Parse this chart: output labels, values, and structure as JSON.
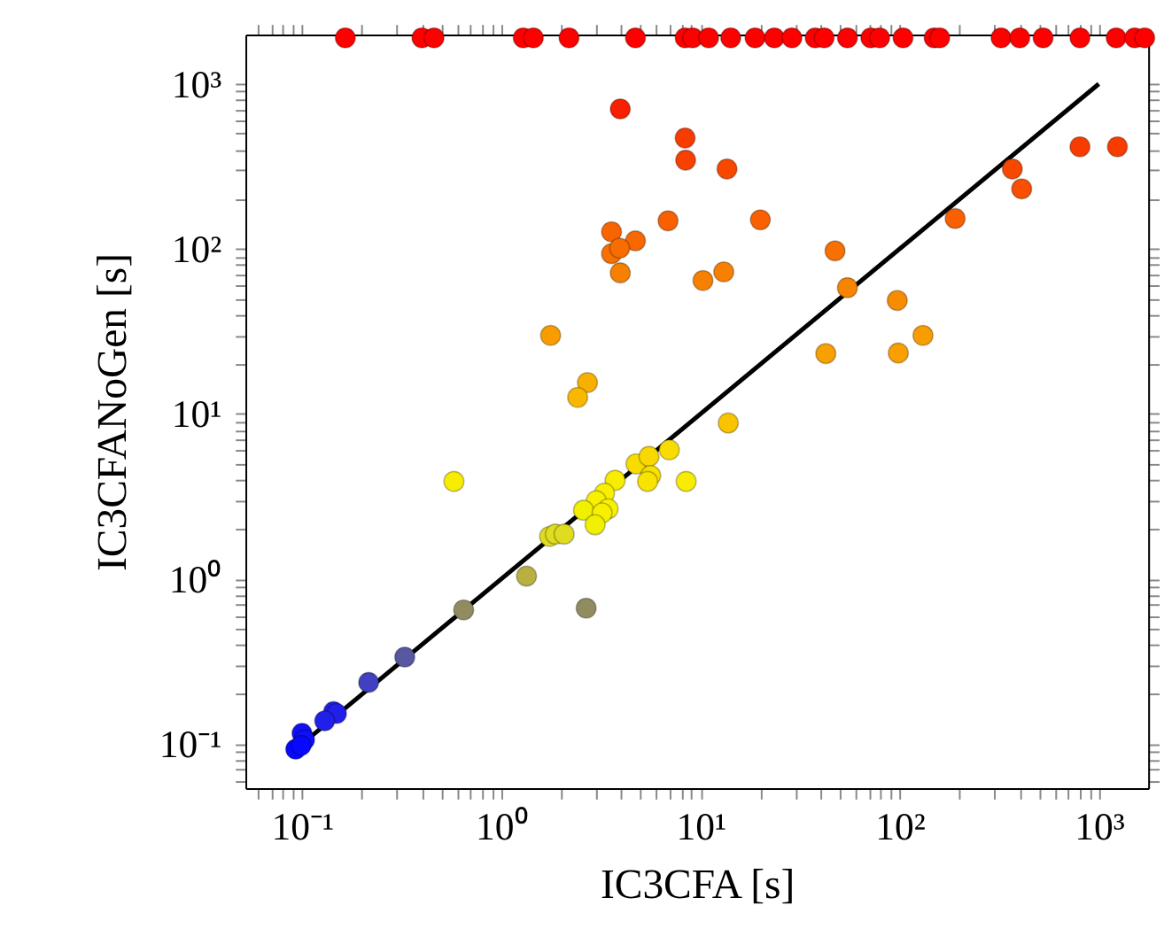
{
  "chart_data": {
    "type": "scatter",
    "xlabel": "IC3CFA [s]",
    "ylabel": "IC3CFANoGen [s]",
    "log": "xy",
    "grid": false,
    "marker": "circle",
    "xlim": [
      0.052,
      1770
    ],
    "ylim": [
      0.054,
      1990
    ],
    "xticks": [
      {
        "value": 0.06,
        "label": null
      },
      {
        "value": 0.07,
        "label": null
      },
      {
        "value": 0.08,
        "label": null
      },
      {
        "value": 0.09,
        "label": null
      },
      {
        "value": 0.1,
        "label": "10⁻¹"
      },
      {
        "value": 0.2,
        "label": null
      },
      {
        "value": 0.3,
        "label": null
      },
      {
        "value": 0.4,
        "label": null
      },
      {
        "value": 0.5,
        "label": null
      },
      {
        "value": 0.6,
        "label": null
      },
      {
        "value": 0.7,
        "label": null
      },
      {
        "value": 0.8,
        "label": null
      },
      {
        "value": 0.9,
        "label": null
      },
      {
        "value": 1,
        "label": "10⁰"
      },
      {
        "value": 2,
        "label": null
      },
      {
        "value": 3,
        "label": null
      },
      {
        "value": 4,
        "label": null
      },
      {
        "value": 5,
        "label": null
      },
      {
        "value": 6,
        "label": null
      },
      {
        "value": 7,
        "label": null
      },
      {
        "value": 8,
        "label": null
      },
      {
        "value": 9,
        "label": null
      },
      {
        "value": 10,
        "label": "10¹"
      },
      {
        "value": 20,
        "label": null
      },
      {
        "value": 30,
        "label": null
      },
      {
        "value": 40,
        "label": null
      },
      {
        "value": 50,
        "label": null
      },
      {
        "value": 60,
        "label": null
      },
      {
        "value": 70,
        "label": null
      },
      {
        "value": 80,
        "label": null
      },
      {
        "value": 90,
        "label": null
      },
      {
        "value": 100,
        "label": "10²"
      },
      {
        "value": 200,
        "label": null
      },
      {
        "value": 300,
        "label": null
      },
      {
        "value": 400,
        "label": null
      },
      {
        "value": 500,
        "label": null
      },
      {
        "value": 600,
        "label": null
      },
      {
        "value": 700,
        "label": null
      },
      {
        "value": 800,
        "label": null
      },
      {
        "value": 900,
        "label": null
      },
      {
        "value": 1000,
        "label": "10³"
      }
    ],
    "yticks": [
      {
        "value": 0.06,
        "label": null
      },
      {
        "value": 0.07,
        "label": null
      },
      {
        "value": 0.08,
        "label": null
      },
      {
        "value": 0.09,
        "label": null
      },
      {
        "value": 0.1,
        "label": "10⁻¹"
      },
      {
        "value": 0.2,
        "label": null
      },
      {
        "value": 0.3,
        "label": null
      },
      {
        "value": 0.4,
        "label": null
      },
      {
        "value": 0.5,
        "label": null
      },
      {
        "value": 0.6,
        "label": null
      },
      {
        "value": 0.7,
        "label": null
      },
      {
        "value": 0.8,
        "label": null
      },
      {
        "value": 0.9,
        "label": null
      },
      {
        "value": 1,
        "label": "10⁰"
      },
      {
        "value": 2,
        "label": null
      },
      {
        "value": 3,
        "label": null
      },
      {
        "value": 4,
        "label": null
      },
      {
        "value": 5,
        "label": null
      },
      {
        "value": 6,
        "label": null
      },
      {
        "value": 7,
        "label": null
      },
      {
        "value": 8,
        "label": null
      },
      {
        "value": 9,
        "label": null
      },
      {
        "value": 10,
        "label": "10¹"
      },
      {
        "value": 20,
        "label": null
      },
      {
        "value": 30,
        "label": null
      },
      {
        "value": 40,
        "label": null
      },
      {
        "value": 50,
        "label": null
      },
      {
        "value": 60,
        "label": null
      },
      {
        "value": 70,
        "label": null
      },
      {
        "value": 80,
        "label": null
      },
      {
        "value": 90,
        "label": null
      },
      {
        "value": 100,
        "label": "10²"
      },
      {
        "value": 200,
        "label": null
      },
      {
        "value": 300,
        "label": null
      },
      {
        "value": 400,
        "label": null
      },
      {
        "value": 500,
        "label": null
      },
      {
        "value": 600,
        "label": null
      },
      {
        "value": 700,
        "label": null
      },
      {
        "value": 800,
        "label": null
      },
      {
        "value": 900,
        "label": null
      },
      {
        "value": 1000,
        "label": "10³"
      }
    ],
    "series": [
      {
        "type": "line",
        "marker": "none",
        "line_style": "solid",
        "color": "#000000",
        "x": [
          0.1,
          1000
        ],
        "values": [
          0.1,
          1000
        ]
      },
      {
        "x": [
          0.165,
          0.4,
          0.46,
          1.29,
          1.45,
          2.19,
          4.72,
          8.38,
          9.15,
          11.0,
          14.2,
          18.8,
          23.5,
          28.8,
          37.7,
          41.8,
          54.7,
          71.7,
          79.4,
          104,
          149,
          159,
          323,
          401,
          525,
          804,
          1222,
          1514,
          1700,
          3.96,
          8.38,
          8.43,
          13.6,
          804,
          1240,
          368,
          410,
          190,
          6.88,
          20.0,
          3.58,
          4.72,
          3.58,
          3.93,
          3.96,
          10.3,
          13.1,
          47.4,
          54.7,
          97.3,
          131,
          42.6,
          98.5,
          13.8,
          8.48,
          6.98,
          1.77,
          2.71,
          2.42,
          0.579,
          4.75,
          5.52,
          5.63,
          5.43,
          3.73,
          3.3,
          3.0,
          3.44,
          2.59,
          3.21,
          2.96,
          1.75,
          1.87,
          2.07,
          1.34,
          0.648,
          2.67,
          0.328,
          0.216,
          0.144,
          0.149,
          0.13,
          0.1,
          0.103,
          0.093,
          0.099
        ],
        "values": [
          1900,
          1900,
          1900,
          1900,
          1900,
          1900,
          1900,
          1900,
          1900,
          1900,
          1900,
          1900,
          1900,
          1900,
          1900,
          1900,
          1900,
          1900,
          1900,
          1900,
          1900,
          1900,
          1900,
          1900,
          1900,
          1900,
          1900,
          1900,
          1900,
          705,
          470,
          345,
          305,
          416,
          416,
          305,
          231,
          153,
          148,
          150,
          127,
          112,
          93.6,
          101,
          71.6,
          64.3,
          72.6,
          97.3,
          58.2,
          48.7,
          29.9,
          23.2,
          23.4,
          8.81,
          3.9,
          6.06,
          29.9,
          15.5,
          12.6,
          3.9,
          4.98,
          5.53,
          4.23,
          3.9,
          3.96,
          3.31,
          2.98,
          2.66,
          2.61,
          2.51,
          2.13,
          1.81,
          1.87,
          1.87,
          1.04,
          0.649,
          0.665,
          0.336,
          0.236,
          0.157,
          0.153,
          0.138,
          0.116,
          0.106,
          0.093,
          0.098
        ],
        "colors": [
          "#ff0000",
          "#ff0000",
          "#ff0000",
          "#ff0000",
          "#ff0000",
          "#ff0000",
          "#ff0000",
          "#ff0000",
          "#ff0000",
          "#ff0000",
          "#ff0000",
          "#ff0000",
          "#ff0000",
          "#ff0000",
          "#ff0000",
          "#ff0000",
          "#ff0000",
          "#ff0000",
          "#ff0000",
          "#ff0000",
          "#ff0000",
          "#ff0000",
          "#ff0000",
          "#ff0000",
          "#ff0000",
          "#ff0000",
          "#ff0000",
          "#ff0000",
          "#ff0000",
          "#f82000",
          "#f83c00",
          "#f84000",
          "#f84800",
          "#f83c00",
          "#f83c00",
          "#f84800",
          "#f85000",
          "#f86000",
          "#f86000",
          "#f86000",
          "#f86400",
          "#f86800",
          "#f87000",
          "#f86c00",
          "#f88000",
          "#f88000",
          "#f88000",
          "#f87000",
          "#f88400",
          "#f88c00",
          "#f89c00",
          "#f8a000",
          "#f8a000",
          "#f8c400",
          "#f8ec00",
          "#f8dc00",
          "#f89c00",
          "#f8b000",
          "#f8b800",
          "#f8ec00",
          "#f8dc00",
          "#f8d800",
          "#f8e000",
          "#f8e400",
          "#f8ec00",
          "#f8f000",
          "#f8f000",
          "#f8f000",
          "#f0f000",
          "#f8f000",
          "#f0f000",
          "#e0dc20",
          "#e0dc20",
          "#e0dc20",
          "#b8b040",
          "#908c60",
          "#908c60",
          "#5858a0",
          "#4040c0",
          "#2020e8",
          "#2020e8",
          "#2020e8",
          "#1010f8",
          "#1010f8",
          "#0808ff",
          "#0808ff"
        ]
      }
    ]
  }
}
